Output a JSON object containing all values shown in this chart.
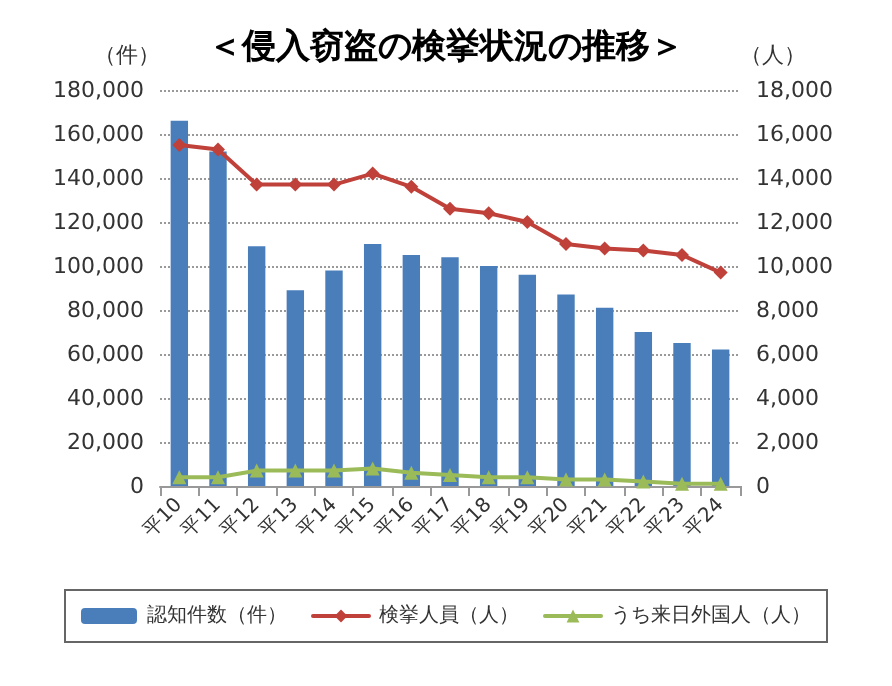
{
  "chart_data": {
    "type": "bar",
    "title": "＜侵入窃盗の検挙状況の推移＞",
    "ylabel": "（件）",
    "y2label": "（人）",
    "categories": [
      "平10",
      "平11",
      "平12",
      "平13",
      "平14",
      "平15",
      "平16",
      "平17",
      "平18",
      "平19",
      "平20",
      "平21",
      "平22",
      "平23",
      "平24"
    ],
    "series": [
      {
        "name": "認知件数（件）",
        "color": "#4a7ebb",
        "values": [
          166000,
          152000,
          109000,
          89000,
          98000,
          110000,
          105000,
          104000,
          100000,
          96000,
          87000,
          81000,
          70000,
          65000,
          62000
        ]
      },
      {
        "name": "検挙人員（人）",
        "type": "line",
        "axis": "y2",
        "marker": "diamond",
        "color": "#c0403a",
        "values": [
          15500,
          15300,
          13700,
          13700,
          13700,
          14200,
          13600,
          12600,
          12400,
          12000,
          11000,
          10800,
          10700,
          10500,
          9700
        ]
      },
      {
        "name": "うち来日外国人（人）",
        "type": "line",
        "axis": "y2",
        "marker": "triangle",
        "color": "#9bbb59",
        "values": [
          400,
          400,
          700,
          700,
          700,
          800,
          600,
          500,
          400,
          400,
          300,
          300,
          200,
          100,
          100
        ]
      }
    ],
    "ylim": [
      0,
      180000
    ],
    "yticks": [
      0,
      {
        "value": 20000,
        "label": "20,000"
      },
      {
        "value": 40000,
        "label": "40,000"
      },
      {
        "value": 60000,
        "label": "60,000"
      },
      {
        "value": 80000,
        "label": "80,000"
      },
      {
        "value": 100000,
        "label": "100,000"
      },
      {
        "value": 120000,
        "label": "120,000"
      },
      {
        "value": 140000,
        "label": "140,000"
      },
      {
        "value": 160000,
        "label": "160,000"
      },
      {
        "value": 180000,
        "label": "180,000"
      }
    ],
    "y2lim": [
      0,
      18000
    ],
    "y2ticks": [
      0,
      {
        "value": 2000,
        "label": "2,000"
      },
      {
        "value": 4000,
        "label": "4,000"
      },
      {
        "value": 6000,
        "label": "6,000"
      },
      {
        "value": 8000,
        "label": "8,000"
      },
      {
        "value": 10000,
        "label": "10,000"
      },
      {
        "value": 12000,
        "label": "12,000"
      },
      {
        "value": 14000,
        "label": "14,000"
      },
      {
        "value": 16000,
        "label": "16,000"
      },
      {
        "value": 18000,
        "label": "18,000"
      }
    ],
    "grid": "y",
    "legend": "bottom"
  }
}
